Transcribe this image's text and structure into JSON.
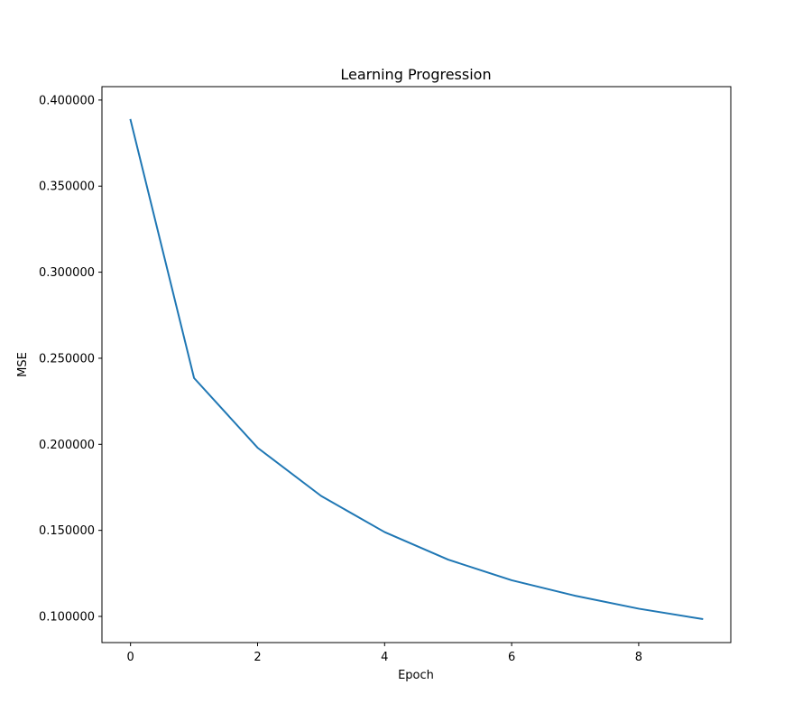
{
  "chart_data": {
    "type": "line",
    "title": "Learning Progression",
    "xlabel": "Epoch",
    "ylabel": "MSE",
    "x": [
      0,
      1,
      2,
      3,
      4,
      5,
      6,
      7,
      8,
      9
    ],
    "series": [
      {
        "values": [
          0.3885,
          0.2385,
          0.198,
          0.17,
          0.149,
          0.133,
          0.121,
          0.112,
          0.1045,
          0.0985
        ],
        "color": "#1f77b4"
      }
    ],
    "xlim": [
      -0.45,
      9.45
    ],
    "ylim": [
      0.0848,
      0.4078
    ],
    "xticks": [
      0,
      2,
      4,
      6,
      8
    ],
    "xtick_labels": [
      "0",
      "2",
      "4",
      "6",
      "8"
    ],
    "yticks": [
      0.1,
      0.15,
      0.2,
      0.25,
      0.3,
      0.35,
      0.4
    ],
    "ytick_labels": [
      "0.100000",
      "0.150000",
      "0.200000",
      "0.250000",
      "0.300000",
      "0.350000",
      "0.400000"
    ],
    "grid": false,
    "legend": "none"
  }
}
